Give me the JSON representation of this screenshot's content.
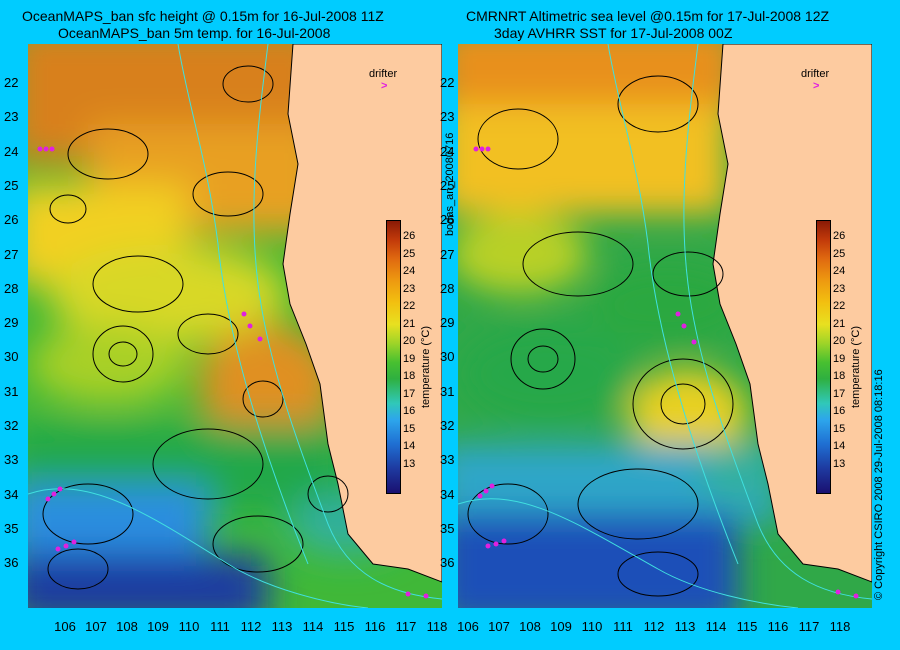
{
  "titles": {
    "left_line1": "OceanMAPS_ban sfc height @ 0.15m for 16-Jul-2008 11Z",
    "left_line2": "OceanMAPS_ban 5m temp. for 16-Jul-2008",
    "right_line1": "CMRNRT Altimetric sea level  @0.15m  for 17-Jul-2008 12Z",
    "right_line2": "3day AVHRR SST for 17-Jul-2008 00Z"
  },
  "run_id": "bodas_an_20080716",
  "copyright": "© Copyright CSIRO 2008   29-Jul-2008 08:18:16",
  "legend": {
    "drifter_label": "drifter",
    "colorbar_label": "temperature (°C)",
    "colorbar_ticks": [
      "26",
      "25",
      "24",
      "23",
      "22",
      "21",
      "20",
      "19",
      "18",
      "17",
      "16",
      "15",
      "14",
      "13"
    ]
  },
  "axes": {
    "lat_ticks": [
      "22",
      "23",
      "24",
      "25",
      "26",
      "27",
      "28",
      "29",
      "30",
      "31",
      "32",
      "33",
      "34",
      "35",
      "36"
    ],
    "lon_ticks": [
      "106",
      "107",
      "108",
      "109",
      "110",
      "111",
      "112",
      "113",
      "114",
      "115",
      "116",
      "117",
      "118"
    ]
  },
  "colors": {
    "background": "#00ccff",
    "land": "#fdcba0",
    "drifter": "#e020e0",
    "coast_contour": "#40e0e0"
  }
}
